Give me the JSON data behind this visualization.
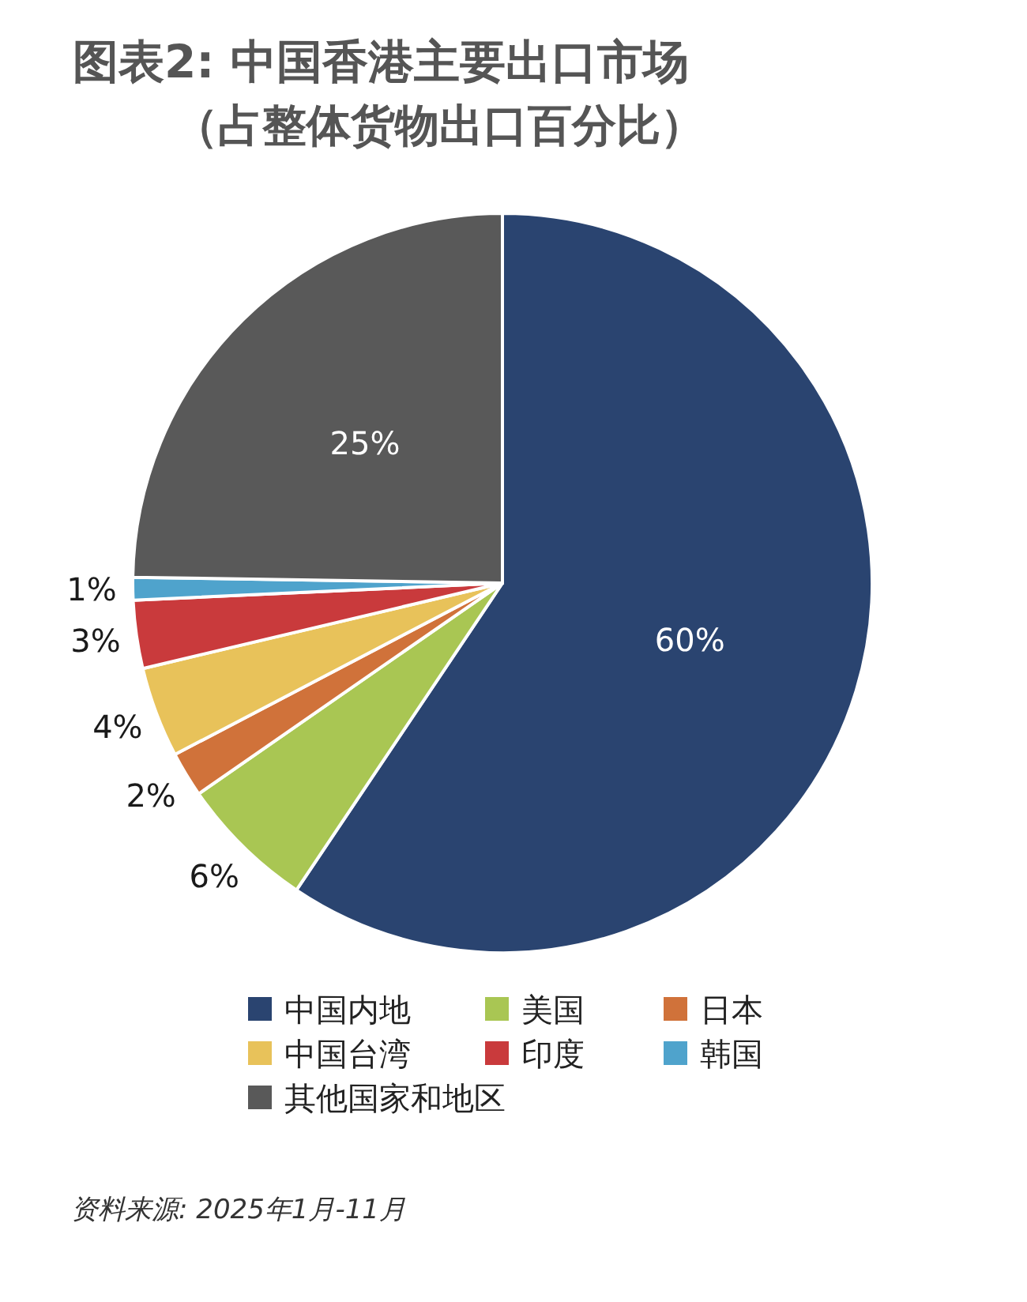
{
  "chart_data": {
    "type": "pie",
    "title": "图表2: 中国香港主要出口市场",
    "subtitle": "（占整体货物出口百分比）",
    "categories": [
      "中国内地",
      "美国",
      "日本",
      "中国台湾",
      "印度",
      "韩国",
      "其他国家和地区"
    ],
    "values": [
      60,
      6,
      2,
      4,
      3,
      1,
      25
    ],
    "colors": [
      "#2a4470",
      "#a9c653",
      "#d0723a",
      "#e8c25a",
      "#c93a3c",
      "#4fa3cc",
      "#595959"
    ],
    "value_labels": [
      "60%",
      "6%",
      "2%",
      "4%",
      "3%",
      "1%",
      "25%"
    ],
    "legend": "bottom",
    "annotations": [
      "资料来源: 2025年1月-11月"
    ]
  }
}
